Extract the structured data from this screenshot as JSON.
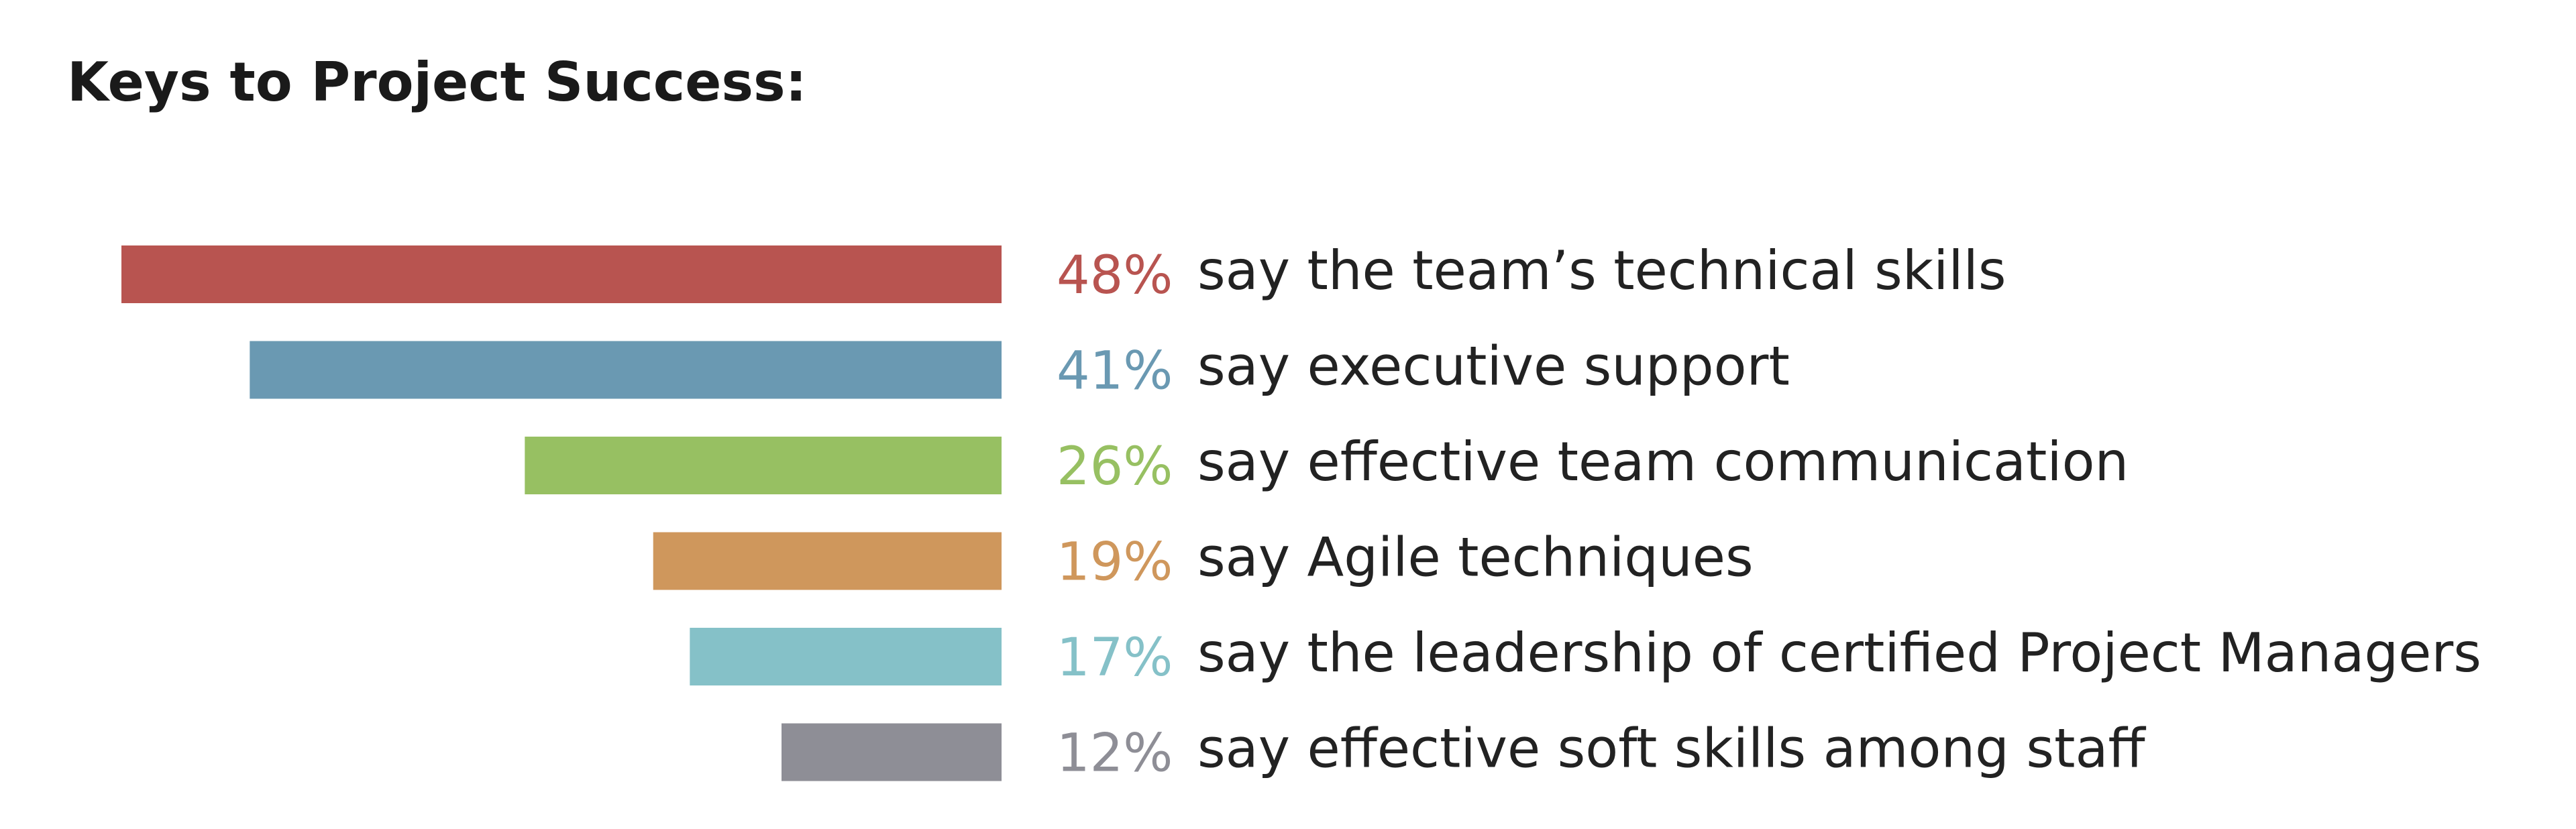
{
  "chart_data": {
    "type": "bar",
    "orientation": "horizontal",
    "title": "Keys to Project Success:",
    "value_unit": "%",
    "xlim": [
      0,
      48
    ],
    "items": [
      {
        "value": 48,
        "value_label": "48%",
        "description": "say the team’s technical skills",
        "color": "#b85450"
      },
      {
        "value": 41,
        "value_label": "41%",
        "description": "say executive support",
        "color": "#6a99b2"
      },
      {
        "value": 26,
        "value_label": "26%",
        "description": "say effective team communication",
        "color": "#97c062"
      },
      {
        "value": 19,
        "value_label": "19%",
        "description": "say Agile techniques",
        "color": "#cf975c"
      },
      {
        "value": 17,
        "value_label": "17%",
        "description": "say the leadership of certified Project Managers",
        "color": "#85c1c8"
      },
      {
        "value": 12,
        "value_label": "12%",
        "description": "say effective soft skills among staff",
        "color": "#8e8e96"
      }
    ]
  }
}
